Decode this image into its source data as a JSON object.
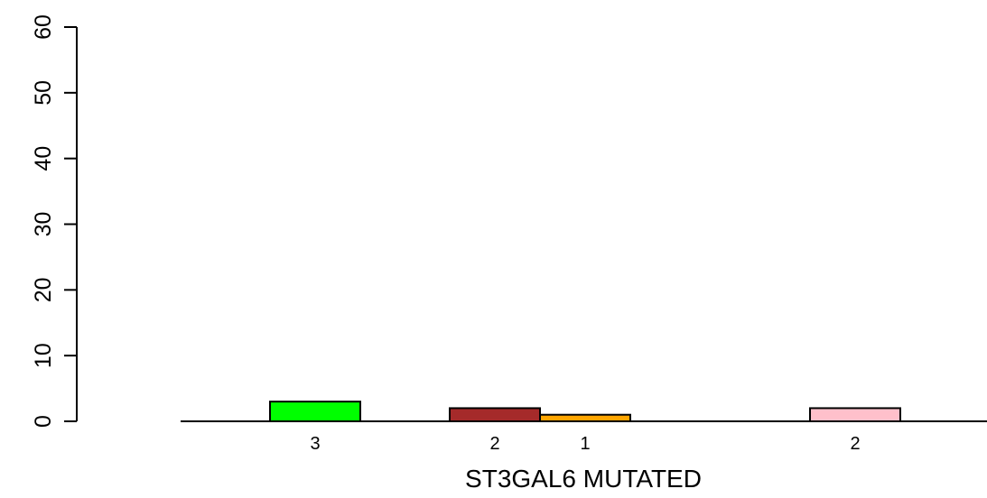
{
  "chart_data": {
    "type": "bar",
    "ylim": [
      0,
      60
    ],
    "y_ticks": [
      "0",
      "10",
      "20",
      "30",
      "40",
      "50",
      "60"
    ],
    "xlabel": "ST3GAL6 MUTATED",
    "ylabel": "",
    "grid": false,
    "bars": [
      {
        "value": 3,
        "label": "3",
        "color": "#00FF00"
      },
      {
        "value": 2,
        "label": "2",
        "color": "#A52A2A"
      },
      {
        "value": 1,
        "label": "1",
        "color": "#FFA500"
      },
      {
        "value": 2,
        "label": "2",
        "color": "#FFC0CB"
      }
    ]
  }
}
